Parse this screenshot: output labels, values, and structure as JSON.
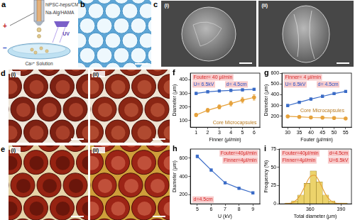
{
  "panels": {
    "a": {
      "label": "a",
      "texts": {
        "cells": "hiPSC-heps/CMC",
        "shell": "Na-Alg/HAMA",
        "light": "UV",
        "bath": "Ca²⁺ Solution",
        "positive": "+",
        "negative": "−"
      }
    },
    "b": {
      "label": "b"
    },
    "c": {
      "label": "c",
      "subpanels": [
        "(i)",
        "(ii)"
      ]
    },
    "d": {
      "label": "d",
      "subpanels": [
        "(i)",
        "(ii)"
      ]
    },
    "e": {
      "label": "e",
      "subpanels": [
        "(i)",
        "(ii)"
      ]
    }
  },
  "chart_data": [
    {
      "panel": "f",
      "type": "line",
      "x_label": "Finner (μl/min)",
      "y_label": "Diameter (μm)",
      "xlim": [
        0.5,
        6.5
      ],
      "xticks": [
        1,
        2,
        3,
        4,
        5,
        6
      ],
      "ylim": [
        50,
        450
      ],
      "yticks": [
        100,
        200,
        300,
        400
      ],
      "grid": false,
      "x": [
        1,
        2,
        3,
        4,
        5,
        6
      ],
      "series": [
        {
          "color": "#3b6cc7",
          "marker": "square",
          "values": [
            300,
            312,
            318,
            322,
            326,
            330
          ],
          "errors": [
            8,
            8,
            8,
            8,
            8,
            8
          ]
        },
        {
          "color": "#e6a23c",
          "marker": "circle",
          "values": [
            140,
            175,
            200,
            225,
            250,
            270
          ],
          "errors": [
            12,
            14,
            15,
            18,
            20,
            20
          ]
        }
      ],
      "annotations": [
        {
          "text": "Fouter= 40 μl/min",
          "color": "#d62828"
        },
        {
          "text": "U= 6.5kV",
          "color": "#2b57c9"
        },
        {
          "text": "d= 4.5cm",
          "color": "#2b57c9"
        },
        {
          "text": "Core Microcapsules",
          "color": "#b8791e"
        }
      ]
    },
    {
      "panel": "g",
      "type": "line",
      "x_label": "Fouter (μl/min)",
      "y_label": "Diameter (μm)",
      "xlim": [
        27.5,
        57.5
      ],
      "xticks": [
        30,
        35,
        40,
        45,
        50,
        55
      ],
      "ylim": [
        100,
        600
      ],
      "yticks": [
        200,
        300,
        400,
        500,
        600
      ],
      "grid": false,
      "x": [
        30,
        35,
        40,
        45,
        50,
        55
      ],
      "series": [
        {
          "color": "#3b6cc7",
          "marker": "square",
          "values": [
            300,
            330,
            360,
            385,
            410,
            430
          ],
          "errors": [
            10,
            10,
            10,
            10,
            10,
            10
          ]
        },
        {
          "color": "#e6a23c",
          "marker": "circle",
          "values": [
            200,
            195,
            190,
            188,
            185,
            180
          ],
          "errors": [
            10,
            10,
            10,
            10,
            10,
            10
          ]
        }
      ],
      "annotations": [
        {
          "text": "Finner= 4 μl/min",
          "color": "#d62828"
        },
        {
          "text": "U= 6.5kV",
          "color": "#2b57c9"
        },
        {
          "text": "d= 4.5cm",
          "color": "#2b57c9"
        },
        {
          "text": "Core Microcapsules",
          "color": "#b8791e"
        }
      ]
    },
    {
      "panel": "h",
      "type": "line",
      "x_label": "U (kV)",
      "y_label": "Diameter (μm)",
      "xlim": [
        4.5,
        9.5
      ],
      "xticks": [
        5,
        6,
        7,
        8,
        9
      ],
      "ylim": [
        100,
        700
      ],
      "yticks": [
        200,
        400,
        600
      ],
      "grid": false,
      "x": [
        5,
        6,
        7,
        8,
        9
      ],
      "series": [
        {
          "color": "#3b6cc7",
          "marker": "square",
          "values": [
            620,
            470,
            330,
            270,
            220
          ],
          "errors": [
            15,
            12,
            10,
            10,
            8
          ]
        }
      ],
      "annotations": [
        {
          "text": "Fouter=40μl/min",
          "color": "#d62828"
        },
        {
          "text": "Finner=4μl/min",
          "color": "#d62828"
        },
        {
          "text": "d=4.5cm",
          "color": "#d62828"
        }
      ]
    },
    {
      "panel": "i",
      "type": "histogram",
      "x_label": "Total diameter (μm)",
      "y_label": "Frequency (%)",
      "xlim": [
        330,
        400
      ],
      "xticks": [
        360,
        390
      ],
      "ylim": [
        0,
        75
      ],
      "yticks": [
        0,
        25,
        50,
        75
      ],
      "grid": false,
      "bins": [
        336,
        342,
        348,
        354,
        360,
        366,
        372,
        378,
        384,
        390,
        396
      ],
      "values": [
        1,
        4,
        12,
        28,
        45,
        30,
        12,
        4,
        1,
        1
      ],
      "color": "#ecd36b",
      "fit": {
        "x": [
          335,
          340,
          345,
          350,
          355,
          360,
          365,
          370,
          375,
          380,
          385,
          390,
          395
        ],
        "values": [
          0.1,
          0.6,
          3.2,
          10.7,
          24.3,
          37.3,
          38.8,
          27.3,
          13,
          4.2,
          0.9,
          0.1,
          0
        ],
        "color": "#e6a23c"
      },
      "annotations": [
        {
          "text": "Fouter=40μl/min",
          "color": "#d62828"
        },
        {
          "text": "Finner=4μl/min",
          "color": "#d62828"
        },
        {
          "text": "d=4.5cm",
          "color": "#d62828"
        },
        {
          "text": "U=6.5kV",
          "color": "#d62828"
        }
      ]
    }
  ]
}
